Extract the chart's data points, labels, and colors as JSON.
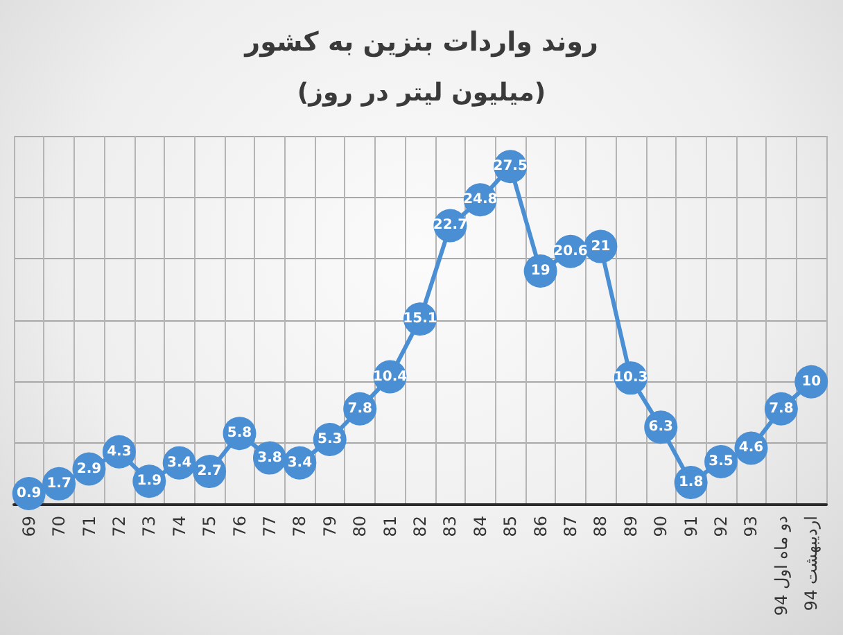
{
  "chart_data": {
    "type": "line",
    "title": "روند واردات بنزین به کشور",
    "subtitle": "(میلیون لیتر در روز)",
    "categories": [
      "69",
      "70",
      "71",
      "72",
      "73",
      "74",
      "75",
      "76",
      "77",
      "78",
      "79",
      "80",
      "81",
      "82",
      "83",
      "84",
      "85",
      "86",
      "87",
      "88",
      "89",
      "90",
      "91",
      "92",
      "93",
      "دو ماه اول 94",
      "اردیبهشت 94"
    ],
    "values": [
      0.9,
      1.7,
      2.9,
      4.3,
      1.9,
      3.4,
      2.7,
      5.8,
      3.8,
      3.4,
      5.3,
      7.8,
      10.4,
      15.1,
      22.7,
      24.8,
      27.5,
      19,
      20.6,
      21,
      10.3,
      6.3,
      1.8,
      3.5,
      4.6,
      7.8,
      10
    ],
    "color": "#4a8fd4",
    "marker": "circle",
    "line_style": "solid",
    "data_labels": true,
    "grid": true,
    "ylim": [
      0,
      30
    ],
    "yticks": [
      {
        "value": 0,
        "label": null
      },
      {
        "value": 5,
        "label": null
      },
      {
        "value": 10,
        "label": null
      },
      {
        "value": 15,
        "label": null
      },
      {
        "value": 20,
        "label": null
      },
      {
        "value": 25,
        "label": null
      },
      {
        "value": 30,
        "label": null
      }
    ],
    "tick_labels": "x"
  }
}
